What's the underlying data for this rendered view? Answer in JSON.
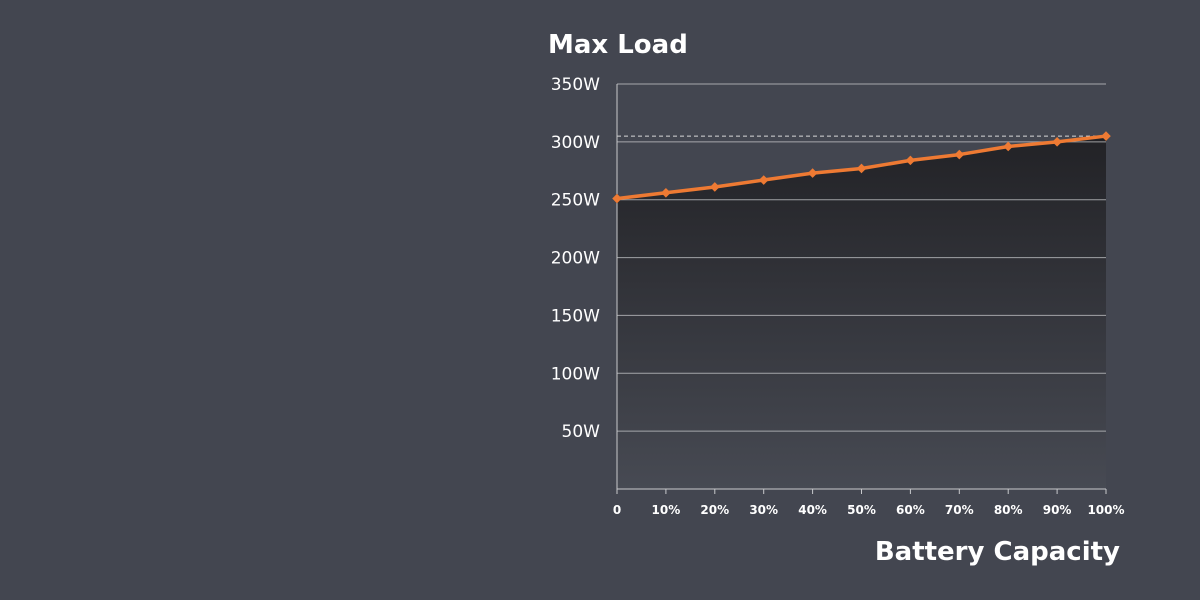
{
  "chart_data": {
    "type": "area",
    "title": "Max Load",
    "xlabel": "Battery Capacity",
    "ylabel": "",
    "categories": [
      "0",
      "10%",
      "20%",
      "30%",
      "40%",
      "50%",
      "60%",
      "70%",
      "80%",
      "90%",
      "100%"
    ],
    "x": [
      0,
      10,
      20,
      30,
      40,
      50,
      60,
      70,
      80,
      90,
      100
    ],
    "values": [
      251,
      256,
      261,
      267,
      273,
      277,
      284,
      289,
      296,
      300,
      305
    ],
    "ylim": [
      0,
      350
    ],
    "xlim": [
      0,
      100
    ],
    "yticks": [
      50,
      100,
      150,
      200,
      250,
      300,
      350
    ],
    "ytick_labels": [
      "50W",
      "100W",
      "150W",
      "200W",
      "250W",
      "300W",
      "350W"
    ],
    "reference_line": 305,
    "grid": true,
    "legend": false
  },
  "colors": {
    "background": "#434650",
    "line": "#ee7a33",
    "marker": "#ee7a33",
    "fill_top": "#222226",
    "fill_bottom": "#474a53",
    "grid": "#c8c9cc",
    "axis": "#c8c9cc",
    "reference_line": "#d8d8d8"
  }
}
